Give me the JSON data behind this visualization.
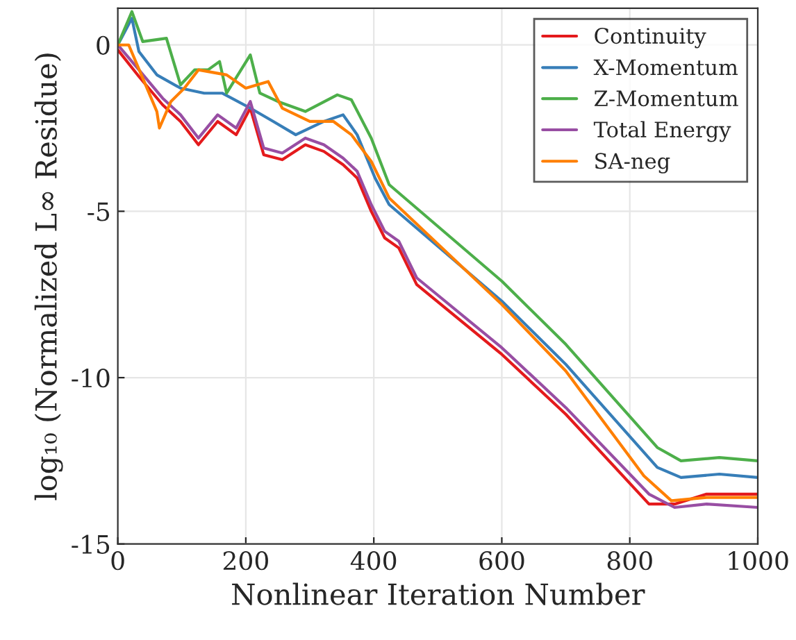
{
  "chart_data": {
    "type": "line",
    "xlabel": "Nonlinear Iteration Number",
    "ylabel": "log₁₀ (Normalized L∞ Residue)",
    "xlim": [
      0,
      1000
    ],
    "xticks": [
      0,
      200,
      400,
      600,
      800,
      1000
    ],
    "ylim": [
      -15,
      1.1
    ],
    "yticks": [
      -15,
      -10,
      -5,
      0
    ],
    "grid": true,
    "legend": "top right",
    "line_style": "solid",
    "marker": "none",
    "series": [
      {
        "name": "Continuity",
        "color": "#e41a1c",
        "x": [
          0,
          33,
          70,
          98,
          126,
          156,
          185,
          207,
          228,
          257,
          293,
          322,
          352,
          374,
          396,
          417,
          439,
          467,
          600,
          700,
          830,
          870,
          920,
          1000
        ],
        "values": [
          -0.15,
          -0.95,
          -1.8,
          -2.3,
          -3.0,
          -2.3,
          -2.7,
          -1.9,
          -3.3,
          -3.45,
          -3.0,
          -3.2,
          -3.6,
          -4.0,
          -5.0,
          -5.8,
          -6.1,
          -7.2,
          -9.3,
          -11.1,
          -13.8,
          -13.8,
          -13.5,
          -13.5
        ]
      },
      {
        "name": "X-Momentum",
        "color": "#377eb8",
        "x": [
          0,
          22,
          33,
          61,
          98,
          135,
          163,
          207,
          243,
          278,
          322,
          352,
          374,
          402,
          424,
          600,
          700,
          843,
          880,
          940,
          1000
        ],
        "values": [
          0,
          0.8,
          -0.2,
          -0.9,
          -1.3,
          -1.45,
          -1.45,
          -1.9,
          -2.3,
          -2.7,
          -2.3,
          -2.1,
          -2.7,
          -4.0,
          -4.8,
          -7.7,
          -9.6,
          -12.7,
          -13.0,
          -12.9,
          -13.0
        ]
      },
      {
        "name": "Z-Momentum",
        "color": "#4daf4a",
        "x": [
          0,
          22,
          39,
          76,
          98,
          120,
          141,
          159,
          170,
          207,
          222,
          250,
          293,
          343,
          365,
          396,
          424,
          600,
          700,
          843,
          880,
          940,
          1000
        ],
        "values": [
          0,
          1.0,
          0.1,
          0.2,
          -1.2,
          -0.75,
          -0.75,
          -0.5,
          -1.45,
          -0.3,
          -1.45,
          -1.7,
          -2.0,
          -1.5,
          -1.65,
          -2.8,
          -4.2,
          -7.1,
          -9.0,
          -12.1,
          -12.5,
          -12.4,
          -12.5
        ]
      },
      {
        "name": "Total Energy",
        "color": "#984ea3",
        "x": [
          0,
          33,
          70,
          98,
          126,
          156,
          185,
          207,
          228,
          257,
          293,
          322,
          352,
          374,
          396,
          417,
          439,
          467,
          600,
          700,
          830,
          870,
          920,
          1000
        ],
        "values": [
          0,
          -0.75,
          -1.6,
          -2.1,
          -2.8,
          -2.1,
          -2.5,
          -1.7,
          -3.1,
          -3.25,
          -2.8,
          -3.0,
          -3.4,
          -3.8,
          -4.8,
          -5.6,
          -5.9,
          -7.0,
          -9.1,
          -10.9,
          -13.5,
          -13.9,
          -13.8,
          -13.9
        ]
      },
      {
        "name": "SA-neg",
        "color": "#ff7f00",
        "x": [
          0,
          17,
          39,
          61,
          65,
          83,
          104,
          126,
          170,
          200,
          235,
          257,
          300,
          337,
          365,
          396,
          424,
          600,
          700,
          822,
          865,
          920,
          1000
        ],
        "values": [
          0,
          0,
          -1.0,
          -2.0,
          -2.5,
          -1.7,
          -1.3,
          -0.75,
          -0.9,
          -1.3,
          -1.1,
          -1.9,
          -2.3,
          -2.3,
          -2.7,
          -3.5,
          -4.6,
          -7.8,
          -9.8,
          -12.95,
          -13.7,
          -13.6,
          -13.6
        ]
      }
    ]
  }
}
